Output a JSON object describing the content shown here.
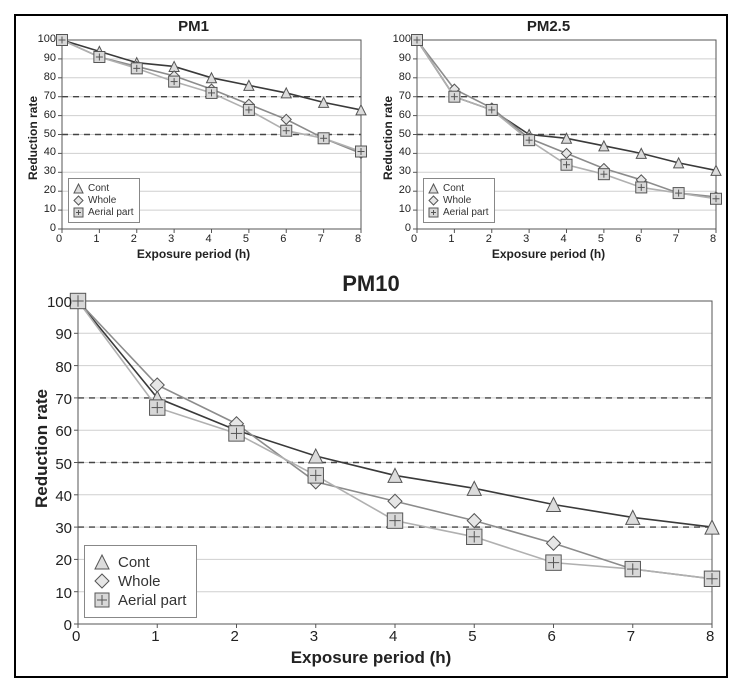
{
  "background_color": "#ffffff",
  "border_color": "#000000",
  "grid_color": "#cfcfcf",
  "dash_ref_color": "#444444",
  "axis_color": "#555555",
  "tick_font": "Arial",
  "tick_color": "#222222",
  "series_style": {
    "cont": {
      "label": "Cont",
      "line_color": "#3a3a3a",
      "line_width": 1.6,
      "marker": "triangle",
      "marker_size": 10,
      "marker_fill": "#dcdcdc",
      "marker_stroke": "#555555"
    },
    "whole": {
      "label": "Whole",
      "line_color": "#8c8c8c",
      "line_width": 1.6,
      "marker": "diamond",
      "marker_size": 10,
      "marker_fill": "#e6e6e6",
      "marker_stroke": "#555555"
    },
    "aerial": {
      "label": "Aerial part",
      "line_color": "#b0b0b0",
      "line_width": 1.6,
      "marker": "square",
      "marker_size": 11,
      "marker_fill": "#d8d8d8",
      "marker_stroke": "#555555",
      "inner_cross": true
    }
  },
  "charts": [
    {
      "id": "pm1",
      "title": "PM1",
      "type": "line",
      "title_fontsize": 15,
      "xlabel": "Exposure period (h)",
      "ylabel": "Reduction rate",
      "xlim": [
        0,
        8
      ],
      "ylim": [
        0,
        100
      ],
      "xtick_step": 1,
      "ytick_step": 10,
      "dashed_refs": [
        70,
        50
      ],
      "label_fontsize": 12,
      "tick_fontsize": 11,
      "legend_pos": "lower-left",
      "x": [
        0,
        1,
        2,
        3,
        4,
        5,
        6,
        7,
        8
      ],
      "series": {
        "cont": [
          100,
          94,
          88,
          86,
          80,
          76,
          72,
          67,
          63
        ],
        "whole": [
          100,
          91,
          86,
          81,
          74,
          66,
          58,
          48,
          40
        ],
        "aerial": [
          100,
          91,
          85,
          78,
          72,
          63,
          52,
          48,
          41
        ]
      }
    },
    {
      "id": "pm25",
      "title": "PM2.5",
      "type": "line",
      "title_fontsize": 15,
      "xlabel": "Exposure period (h)",
      "ylabel": "Reduction rate",
      "xlim": [
        0,
        8
      ],
      "ylim": [
        0,
        100
      ],
      "xtick_step": 1,
      "ytick_step": 10,
      "dashed_refs": [
        70,
        50
      ],
      "label_fontsize": 12,
      "tick_fontsize": 11,
      "legend_pos": "lower-left",
      "x": [
        0,
        1,
        2,
        3,
        4,
        5,
        6,
        7,
        8
      ],
      "series": {
        "cont": [
          100,
          70,
          63,
          50,
          48,
          44,
          40,
          35,
          31
        ],
        "whole": [
          100,
          74,
          64,
          48,
          40,
          32,
          26,
          19,
          17
        ],
        "aerial": [
          100,
          70,
          63,
          47,
          34,
          29,
          22,
          19,
          16
        ]
      }
    },
    {
      "id": "pm10",
      "title": "PM10",
      "type": "line",
      "title_fontsize": 22,
      "xlabel": "Exposure period (h)",
      "ylabel": "Reduction rate",
      "xlim": [
        0,
        8
      ],
      "ylim": [
        0,
        100
      ],
      "xtick_step": 1,
      "ytick_step": 10,
      "dashed_refs": [
        70,
        50,
        30
      ],
      "label_fontsize": 17,
      "tick_fontsize": 15,
      "legend_pos": "lower-left",
      "x": [
        0,
        1,
        2,
        3,
        4,
        5,
        6,
        7,
        8
      ],
      "series": {
        "cont": [
          100,
          70,
          60,
          52,
          46,
          42,
          37,
          33,
          30
        ],
        "whole": [
          100,
          74,
          62,
          44,
          38,
          32,
          25,
          17,
          14
        ],
        "aerial": [
          100,
          67,
          59,
          46,
          32,
          27,
          19,
          17,
          14
        ]
      }
    }
  ]
}
